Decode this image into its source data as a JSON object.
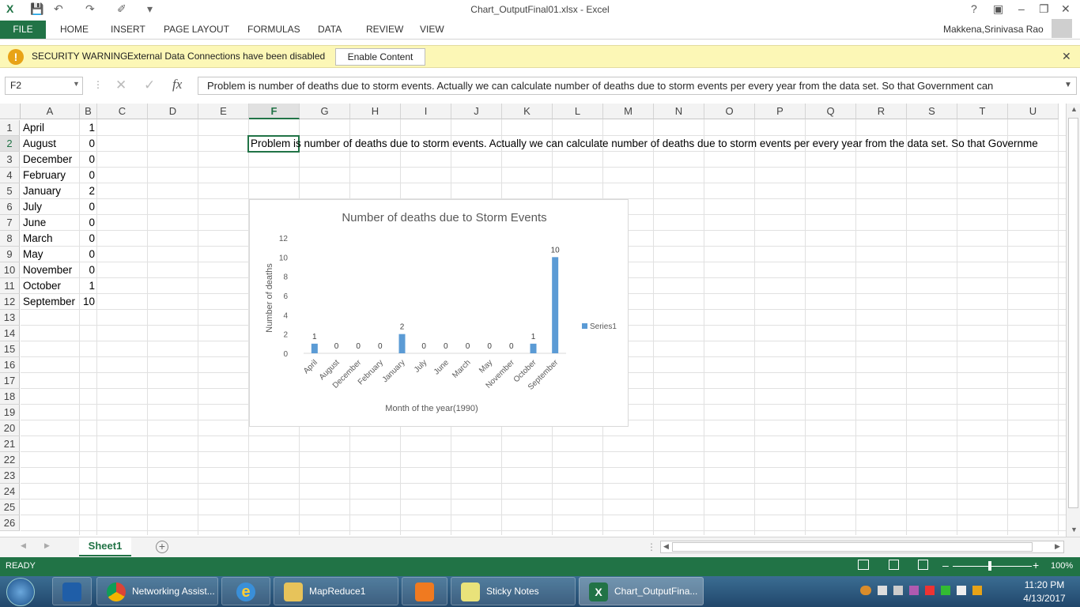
{
  "window": {
    "title": "Chart_OutputFinal01.xlsx - Excel",
    "user": "Makkena,Srinivasa Rao",
    "help": "?"
  },
  "ribbon_tabs": [
    "FILE",
    "HOME",
    "INSERT",
    "PAGE LAYOUT",
    "FORMULAS",
    "DATA",
    "REVIEW",
    "VIEW"
  ],
  "security": {
    "title": "SECURITY WARNING",
    "message": "External Data Connections have been disabled",
    "button": "Enable Content",
    "icon": "warning-icon"
  },
  "formula_bar": {
    "name_box": "F2",
    "fx": "fx",
    "value": "Problem is number of deaths due to storm events. Actually we can calculate number of deaths due to storm events per every year from the data set. So that Government can"
  },
  "columns": [
    "A",
    "B",
    "C",
    "D",
    "E",
    "F",
    "G",
    "H",
    "I",
    "J",
    "K",
    "L",
    "M",
    "N",
    "O",
    "P",
    "Q",
    "R",
    "S",
    "T",
    "U"
  ],
  "rows": [
    "1",
    "2",
    "3",
    "4",
    "5",
    "6",
    "7",
    "8",
    "9",
    "10",
    "11",
    "12",
    "13",
    "14",
    "15",
    "16",
    "17",
    "18",
    "19",
    "20",
    "21",
    "22",
    "23",
    "24",
    "25",
    "26"
  ],
  "cells": {
    "months": [
      "April",
      "August",
      "December",
      "February",
      "January",
      "July",
      "June",
      "March",
      "May",
      "November",
      "October",
      "September"
    ],
    "counts": [
      "1",
      "0",
      "0",
      "0",
      "2",
      "0",
      "0",
      "0",
      "0",
      "0",
      "1",
      "10"
    ],
    "f2": "Problem is number of deaths due to storm events. Actually we can calculate number of deaths due to storm events per every year from the data set. So that Governme"
  },
  "chart_data": {
    "type": "bar",
    "title": "Number of deaths due to Storm Events",
    "xlabel": "Month of the year(1990)",
    "ylabel": "Number of deaths",
    "categories": [
      "April",
      "August",
      "December",
      "February",
      "January",
      "July",
      "June",
      "March",
      "May",
      "November",
      "October",
      "September"
    ],
    "series": [
      {
        "name": "Series1",
        "values": [
          1,
          0,
          0,
          0,
          2,
          0,
          0,
          0,
          0,
          0,
          1,
          10
        ]
      }
    ],
    "yticks": [
      "0",
      "2",
      "4",
      "6",
      "8",
      "10",
      "12"
    ],
    "ylim": [
      0,
      12
    ],
    "legend": "right",
    "grid": false,
    "color": "#5b9bd5"
  },
  "sheets": {
    "active": "Sheet1"
  },
  "status": {
    "mode": "READY",
    "zoom": "100%"
  },
  "taskbar": {
    "items": [
      "Networking Assist...",
      "MapReduce1",
      "Sticky Notes",
      "Chart_OutputFina..."
    ],
    "time": "11:20 PM",
    "date": "4/13/2017"
  }
}
